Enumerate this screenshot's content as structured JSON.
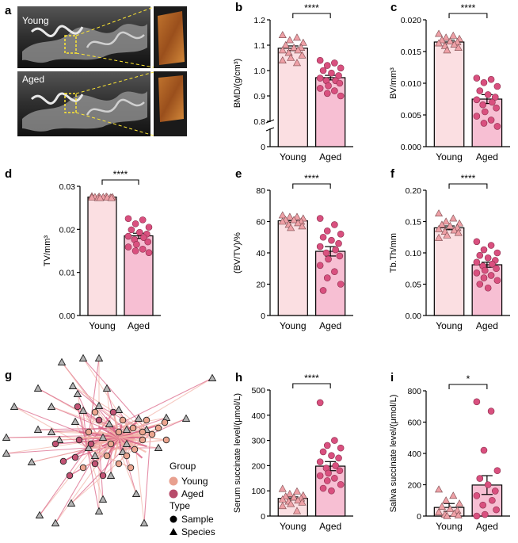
{
  "panels": {
    "a": {
      "label": "a",
      "top_label": "Young",
      "bottom_label": "Aged"
    },
    "g": {
      "label": "g"
    }
  },
  "legend": {
    "group_title": "Group",
    "group_items": [
      "Young",
      "Aged"
    ],
    "type_title": "Type",
    "type_items": [
      "Sample",
      "Species"
    ]
  },
  "colors": {
    "young_bar": "#fbdfe2",
    "aged_bar": "#f7bfd3",
    "young_marker": "#eea0a6",
    "aged_marker": "#d9507f",
    "edge_young": "#f3b3a7",
    "edge_aged": "#d95f83",
    "legend_young": "#e8a08f",
    "legend_aged": "#b84c6b"
  },
  "chart_data": [
    {
      "id": "b",
      "label": "b",
      "type": "bar",
      "categories": [
        "Young",
        "Aged"
      ],
      "ylabel": "BMD/(g/cm³)",
      "ylim": [
        0,
        1.2
      ],
      "axis_break": [
        0.001,
        0.8
      ],
      "lower_ticks": [
        0
      ],
      "upper_ticks": [
        0.8,
        0.9,
        1.0,
        1.1,
        1.2
      ],
      "tick_labels": [
        "0",
        "0.8",
        "0.9",
        "1.0",
        "1.1",
        "1.2"
      ],
      "means": [
        1.088,
        0.972
      ],
      "sem": [
        0.009,
        0.009
      ],
      "significance": "****",
      "points": [
        [
          1.14,
          1.13,
          1.12,
          1.11,
          1.1,
          1.09,
          1.09,
          1.08,
          1.08,
          1.07,
          1.06,
          1.05,
          1.04,
          1.03
        ],
        [
          1.04,
          1.03,
          1.02,
          1.01,
          1.0,
          0.99,
          0.98,
          0.97,
          0.96,
          0.96,
          0.95,
          0.94,
          0.93,
          0.92,
          0.91,
          0.9
        ]
      ]
    },
    {
      "id": "c",
      "label": "c",
      "type": "bar",
      "categories": [
        "Young",
        "Aged"
      ],
      "ylabel": "BV/mm³",
      "ylim": [
        0,
        0.02
      ],
      "ticks": [
        0,
        0.005,
        0.01,
        0.015,
        0.02
      ],
      "tick_labels": [
        "0.000",
        "0.005",
        "0.010",
        "0.015",
        "0.020"
      ],
      "means": [
        0.0165,
        0.0075
      ],
      "sem": [
        0.0003,
        0.0007
      ],
      "significance": "****",
      "points": [
        [
          0.0178,
          0.0175,
          0.0172,
          0.017,
          0.0168,
          0.0166,
          0.0165,
          0.0163,
          0.0161,
          0.0159,
          0.0156,
          0.0152
        ],
        [
          0.0108,
          0.0106,
          0.0101,
          0.0095,
          0.0088,
          0.0082,
          0.0078,
          0.0074,
          0.007,
          0.0066,
          0.0061,
          0.0055,
          0.0048,
          0.0042,
          0.0037,
          0.0032
        ]
      ]
    },
    {
      "id": "d",
      "label": "d",
      "type": "bar",
      "categories": [
        "Young",
        "Aged"
      ],
      "ylabel": "TV/mm³",
      "ylim": [
        0,
        0.03
      ],
      "ticks": [
        0,
        0.01,
        0.02,
        0.03
      ],
      "tick_labels": [
        "0.00",
        "0.01",
        "0.02",
        "0.03"
      ],
      "means": [
        0.0275,
        0.0185
      ],
      "sem": [
        0.0001,
        0.0006
      ],
      "significance": "****",
      "points": [
        [
          0.0277,
          0.0276,
          0.0276,
          0.0275,
          0.0275,
          0.0275,
          0.0274,
          0.0274,
          0.0274,
          0.0273,
          0.0273,
          0.0273
        ],
        [
          0.0225,
          0.0222,
          0.0213,
          0.0205,
          0.0199,
          0.0193,
          0.0189,
          0.0184,
          0.0181,
          0.0176,
          0.0171,
          0.0165,
          0.0159,
          0.0154,
          0.015,
          0.0146
        ]
      ]
    },
    {
      "id": "e",
      "label": "e",
      "type": "bar",
      "categories": [
        "Young",
        "Aged"
      ],
      "ylabel": "(BV/TV)/%",
      "ylim": [
        0,
        80
      ],
      "ticks": [
        0,
        20,
        40,
        60,
        80
      ],
      "tick_labels": [
        "0",
        "20",
        "40",
        "60",
        "80"
      ],
      "means": [
        60.5,
        41
      ],
      "sem": [
        1.0,
        3.0
      ],
      "significance": "****",
      "points": [
        [
          64,
          63,
          63,
          62,
          61,
          61,
          60,
          60,
          59,
          58,
          57,
          56
        ],
        [
          62,
          58,
          54,
          52,
          50,
          48,
          46,
          44,
          42,
          40,
          38,
          36,
          32,
          28,
          24,
          20,
          16
        ]
      ]
    },
    {
      "id": "f",
      "label": "f",
      "type": "bar",
      "categories": [
        "Young",
        "Aged"
      ],
      "ylabel": "Tb.Th/mm",
      "ylim": [
        0,
        0.2
      ],
      "ticks": [
        0,
        0.05,
        0.1,
        0.15,
        0.2
      ],
      "tick_labels": [
        "0.00",
        "0.05",
        "0.10",
        "0.15",
        "0.20"
      ],
      "means": [
        0.14,
        0.081
      ],
      "sem": [
        0.003,
        0.004
      ],
      "significance": "****",
      "points": [
        [
          0.163,
          0.155,
          0.15,
          0.147,
          0.145,
          0.143,
          0.14,
          0.138,
          0.136,
          0.134,
          0.132,
          0.128,
          0.124
        ],
        [
          0.118,
          0.112,
          0.105,
          0.1,
          0.096,
          0.092,
          0.088,
          0.085,
          0.082,
          0.079,
          0.075,
          0.072,
          0.068,
          0.064,
          0.06,
          0.056,
          0.05,
          0.044
        ]
      ]
    },
    {
      "id": "h",
      "label": "h",
      "type": "bar",
      "categories": [
        "Young",
        "Aged"
      ],
      "ylabel": "Serum succinate level/(μmol/L)",
      "ylim": [
        0,
        500
      ],
      "ticks": [
        0,
        100,
        200,
        300,
        400,
        500
      ],
      "tick_labels": [
        "0",
        "100",
        "200",
        "300",
        "400",
        "500"
      ],
      "means": [
        70,
        198
      ],
      "sem": [
        6,
        18
      ],
      "significance": "****",
      "points": [
        [
          108,
          98,
          88,
          82,
          78,
          74,
          70,
          66,
          62,
          58,
          54,
          48,
          40,
          20
        ],
        [
          450,
          300,
          280,
          270,
          255,
          240,
          230,
          215,
          200,
          190,
          180,
          170,
          160,
          150,
          140,
          125,
          110,
          100
        ]
      ]
    },
    {
      "id": "i",
      "label": "i",
      "type": "bar",
      "categories": [
        "Young",
        "Aged"
      ],
      "ylabel": "Saliva succinate level/(μmol/L)",
      "ylim": [
        0,
        800
      ],
      "ticks": [
        0,
        200,
        400,
        600,
        800
      ],
      "tick_labels": [
        "0",
        "200",
        "400",
        "600",
        "800"
      ],
      "means": [
        55,
        198
      ],
      "sem": [
        25,
        60
      ],
      "significance": "*",
      "points": [
        [
          170,
          130,
          100,
          80,
          60,
          45,
          35,
          25,
          15,
          10,
          5,
          0
        ],
        [
          730,
          670,
          420,
          290,
          240,
          200,
          160,
          130,
          100,
          70,
          40,
          10,
          0
        ]
      ]
    },
    {
      "id": "g",
      "label": "g",
      "type": "network",
      "groups": [
        "Young",
        "Aged"
      ],
      "node_types": [
        "Sample",
        "Species"
      ],
      "node_count": {
        "Sample": 30,
        "Species": 40
      }
    }
  ]
}
